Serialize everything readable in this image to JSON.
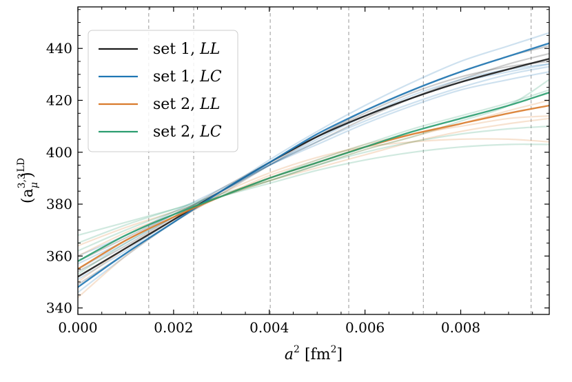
{
  "chart_data": {
    "type": "line",
    "xlabel": "a² [fm²]",
    "ylabel": "(aμ³ʳ³)ᴸᴰ",
    "ylabel_parts": {
      "base": "(a",
      "sub": "μ",
      "sup": "3,3",
      "close": ")",
      "outer_sup": "LD"
    },
    "xlabel_parts": {
      "base": "a",
      "sup": "2",
      "unit_open": " [fm",
      "unit_sup": "2",
      "unit_close": "]"
    },
    "xlim": [
      0.0,
      0.00985
    ],
    "ylim": [
      337.5,
      456
    ],
    "xticks": [
      0.0,
      0.002,
      0.004,
      0.006,
      0.008
    ],
    "xtick_labels": [
      "0.000",
      "0.002",
      "0.004",
      "0.006",
      "0.008"
    ],
    "yticks": [
      340,
      360,
      380,
      400,
      420,
      440
    ],
    "ytick_labels": [
      "340",
      "360",
      "380",
      "400",
      "420",
      "440"
    ],
    "vlines": [
      0.00148,
      0.00242,
      0.00402,
      0.00566,
      0.00722,
      0.00947
    ],
    "x": [
      0.0,
      0.001,
      0.002,
      0.003,
      0.004,
      0.005,
      0.006,
      0.007,
      0.008,
      0.009,
      0.00985
    ],
    "legend_position": "top-left",
    "series": [
      {
        "name": "set 1, LL",
        "legend_label": "set 1,",
        "legend_italic": "LL",
        "color": "#1a1a1a",
        "main": [
          352,
          363,
          374,
          385,
          396,
          406,
          414,
          421,
          427,
          432,
          436
        ],
        "variants": [
          [
            349,
            361,
            373,
            384,
            395,
            406,
            416,
            424,
            431,
            437,
            441
          ],
          [
            358,
            367,
            376,
            385,
            395,
            404,
            413,
            421,
            428,
            434,
            438
          ],
          [
            354,
            364,
            375,
            386,
            396,
            406,
            415,
            423,
            429,
            433,
            435
          ]
        ]
      },
      {
        "name": "set 1, LC",
        "legend_label": "set 1,",
        "legend_italic": "LC",
        "color": "#1f77b4",
        "main": [
          348,
          361,
          373,
          385,
          396,
          407,
          416,
          424,
          431,
          437,
          442
        ],
        "variants": [
          [
            346,
            360,
            373,
            385,
            397,
            408,
            418,
            427,
            435,
            441,
            446
          ],
          [
            355,
            365,
            375,
            385,
            395,
            404,
            412,
            419,
            425,
            430,
            433
          ],
          [
            360,
            368,
            377,
            386,
            395,
            403,
            411,
            418,
            424,
            428,
            431
          ],
          [
            351,
            362,
            374,
            385,
            396,
            406,
            414,
            421,
            427,
            431,
            434
          ],
          [
            357,
            366,
            376,
            385,
            395,
            405,
            414,
            422,
            428,
            432,
            434
          ]
        ]
      },
      {
        "name": "set 2, LL",
        "legend_label": "set 2,",
        "legend_italic": "LL",
        "color": "#d97b2b",
        "main": [
          355,
          366,
          375,
          383,
          390,
          396,
          402,
          407,
          411,
          415,
          418
        ],
        "variants": [
          [
            344,
            360,
            373,
            384,
            392,
            398,
            402,
            404,
            405,
            405,
            404
          ],
          [
            350,
            363,
            374,
            383,
            391,
            397,
            403,
            407,
            410,
            413,
            414
          ],
          [
            360,
            369,
            376,
            383,
            389,
            395,
            401,
            406,
            411,
            416,
            420
          ],
          [
            364,
            371,
            377,
            383,
            389,
            394,
            399,
            404,
            408,
            411,
            413
          ]
        ]
      },
      {
        "name": "set 2, LC",
        "legend_label": "set 2,",
        "legend_italic": "LC",
        "color": "#2a9d6f",
        "main": [
          358,
          368,
          376,
          383,
          390,
          396,
          402,
          408,
          413,
          418,
          423
        ],
        "variants": [
          [
            365,
            372,
            378,
            384,
            389,
            395,
            401,
            406,
            412,
            418,
            428
          ],
          [
            362,
            370,
            377,
            383,
            389,
            395,
            400,
            404,
            407,
            409,
            410
          ],
          [
            353,
            365,
            375,
            383,
            390,
            397,
            403,
            409,
            414,
            419,
            424
          ],
          [
            368,
            373,
            378,
            383,
            388,
            393,
            397,
            400,
            402,
            403,
            403
          ]
        ]
      }
    ]
  }
}
